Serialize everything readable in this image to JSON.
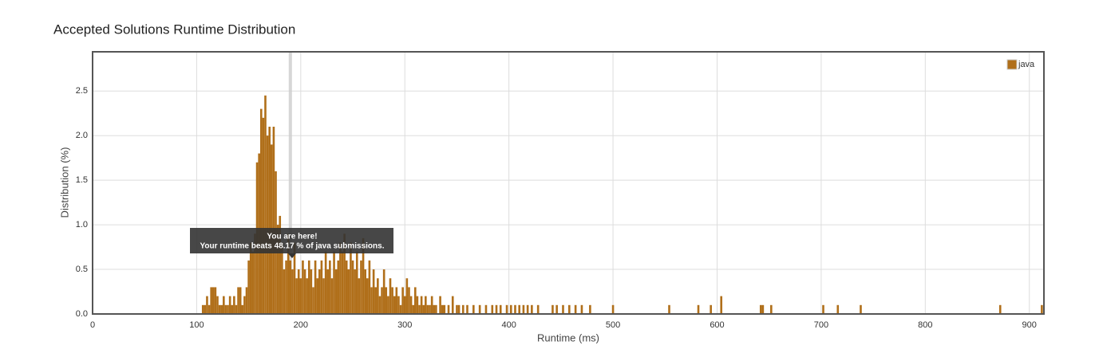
{
  "chart_data": {
    "type": "bar",
    "title": "Accepted Solutions Runtime Distribution",
    "x_label": "Runtime (ms)",
    "y_label": "Distribution (%)",
    "series": [
      {
        "name": "java",
        "color": "#b06f1a",
        "x": [
          106,
          108,
          110,
          112,
          114,
          116,
          118,
          120,
          122,
          124,
          126,
          128,
          130,
          132,
          134,
          136,
          138,
          140,
          142,
          144,
          146,
          148,
          150,
          152,
          154,
          156,
          158,
          160,
          162,
          164,
          166,
          168,
          170,
          172,
          174,
          176,
          178,
          180,
          182,
          184,
          186,
          188,
          190,
          192,
          194,
          196,
          198,
          200,
          202,
          204,
          206,
          208,
          210,
          212,
          214,
          216,
          218,
          220,
          222,
          224,
          226,
          228,
          230,
          232,
          234,
          236,
          238,
          240,
          242,
          244,
          246,
          248,
          250,
          252,
          254,
          256,
          258,
          260,
          262,
          264,
          266,
          268,
          270,
          272,
          274,
          276,
          278,
          280,
          282,
          284,
          286,
          288,
          290,
          292,
          294,
          296,
          298,
          300,
          302,
          304,
          306,
          308,
          310,
          312,
          314,
          316,
          318,
          320,
          322,
          324,
          326,
          328,
          330,
          334,
          336,
          338,
          342,
          346,
          350,
          352,
          356,
          360,
          366,
          372,
          378,
          384,
          388,
          392,
          398,
          402,
          406,
          410,
          414,
          418,
          422,
          428,
          442,
          446,
          452,
          458,
          464,
          470,
          478,
          500,
          554,
          582,
          594,
          604,
          642,
          644,
          652,
          702,
          716,
          738,
          872,
          912
        ],
        "values": [
          0.1,
          0.1,
          0.2,
          0.1,
          0.3,
          0.3,
          0.3,
          0.2,
          0.1,
          0.1,
          0.2,
          0.1,
          0.1,
          0.2,
          0.1,
          0.2,
          0.1,
          0.3,
          0.3,
          0.1,
          0.2,
          0.3,
          0.6,
          0.8,
          0.7,
          0.9,
          1.7,
          1.8,
          2.3,
          2.2,
          2.45,
          2.0,
          2.1,
          1.9,
          2.1,
          1.6,
          1.0,
          1.1,
          0.8,
          0.5,
          0.6,
          0.9,
          0.6,
          0.5,
          0.8,
          0.4,
          0.5,
          0.4,
          0.6,
          0.5,
          0.4,
          0.6,
          0.5,
          0.3,
          0.6,
          0.4,
          0.5,
          0.6,
          0.4,
          0.7,
          0.5,
          0.6,
          0.4,
          0.7,
          0.5,
          0.6,
          0.8,
          0.7,
          0.9,
          0.6,
          0.5,
          0.8,
          0.6,
          0.5,
          0.7,
          0.4,
          0.6,
          0.85,
          0.5,
          0.4,
          0.6,
          0.3,
          0.5,
          0.3,
          0.4,
          0.2,
          0.3,
          0.5,
          0.3,
          0.2,
          0.4,
          0.3,
          0.2,
          0.3,
          0.2,
          0.1,
          0.3,
          0.2,
          0.4,
          0.3,
          0.2,
          0.1,
          0.3,
          0.2,
          0.1,
          0.2,
          0.1,
          0.2,
          0.1,
          0.1,
          0.2,
          0.1,
          0.1,
          0.2,
          0.1,
          0.1,
          0.1,
          0.2,
          0.1,
          0.1,
          0.1,
          0.1,
          0.1,
          0.1,
          0.1,
          0.1,
          0.1,
          0.1,
          0.1,
          0.1,
          0.1,
          0.1,
          0.1,
          0.1,
          0.1,
          0.1,
          0.1,
          0.1,
          0.1,
          0.1,
          0.1,
          0.1,
          0.1,
          0.1,
          0.1,
          0.1,
          0.1,
          0.2,
          0.1,
          0.1,
          0.1,
          0.1,
          0.1,
          0.1,
          0.1,
          0.1
        ]
      }
    ],
    "xlim": [
      0,
      914
    ],
    "xticks": [
      0,
      100,
      200,
      300,
      400,
      500,
      600,
      700,
      800,
      900
    ],
    "ylim": [
      0,
      2.94
    ],
    "yticks": [
      {
        "value": 0,
        "label": "0.0"
      },
      0.5,
      {
        "value": 1,
        "label": "1.0"
      },
      1.5,
      {
        "value": 2,
        "label": "2.0"
      },
      2.5
    ],
    "grid": true,
    "legend": "top-right",
    "marker_x": 190,
    "annotation": {
      "heading": "You are here!",
      "text": "Your runtime beats 48.17 % of java submissions."
    }
  }
}
